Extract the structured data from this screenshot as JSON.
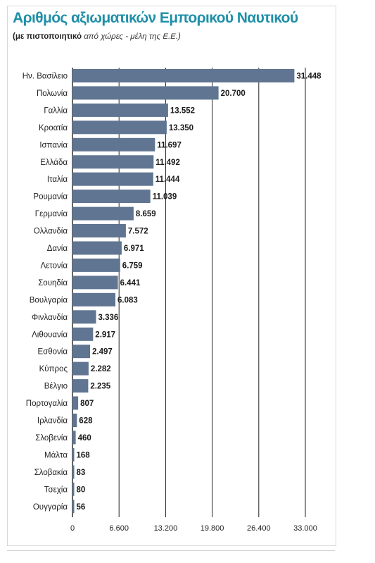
{
  "page": {
    "title": "Αριθμός αξιωματικών Εμπορικού Ναυτικού",
    "subtitle_bold": "(με πιστοποιητικό",
    "subtitle_rest": " από χώρες - μέλη της Ε.Ε.)"
  },
  "colors": {
    "bar": "#5f7591",
    "title": "#1f8fa8",
    "grid": "#222222"
  },
  "chart_data": {
    "type": "bar",
    "orientation": "horizontal",
    "title": "Αριθμός αξιωματικών Εμπορικού Ναυτικού",
    "subtitle": "(με πιστοποιητικό από χώρες - μέλη της Ε.Ε.)",
    "xlabel": "",
    "ylabel": "",
    "xlim": [
      0,
      33000
    ],
    "ticks": [
      0,
      6600,
      13200,
      19800,
      26400,
      33000
    ],
    "tick_labels": [
      "0",
      "6.600",
      "13.200",
      "19.800",
      "26.400",
      "33.000"
    ],
    "grid": true,
    "categories": [
      "Ην. Βασίλειο",
      "Πολωνία",
      "Γαλλία",
      "Κροατία",
      "Ισπανία",
      "Ελλάδα",
      "Ιταλία",
      "Ρουμανία",
      "Γερμανία",
      "Ολλανδία",
      "Δανία",
      "Λετονία",
      "Σουηδία",
      "Βουλγαρία",
      "Φινλανδία",
      "Λιθουανία",
      "Εσθονία",
      "Κύπρος",
      "Βέλγιο",
      "Πορτογαλία",
      "Ιρλανδία",
      "Σλοβενία",
      "Μάλτα",
      "Σλοβακία",
      "Τσεχία",
      "Ουγγαρία"
    ],
    "values": [
      31448,
      20700,
      13552,
      13350,
      11697,
      11492,
      11444,
      11039,
      8659,
      7572,
      6971,
      6759,
      6441,
      6083,
      3336,
      2917,
      2497,
      2282,
      2235,
      807,
      628,
      460,
      168,
      83,
      80,
      56
    ],
    "value_labels": [
      "31.448",
      "20.700",
      "13.552",
      "13.350",
      "11.697",
      "11.492",
      "11.444",
      "11.039",
      "8.659",
      "7.572",
      "6.971",
      "6.759",
      "6.441",
      "6.083",
      "3.336",
      "2.917",
      "2.497",
      "2.282",
      "2.235",
      "807",
      "628",
      "460",
      "168",
      "83",
      "80",
      "56"
    ]
  }
}
